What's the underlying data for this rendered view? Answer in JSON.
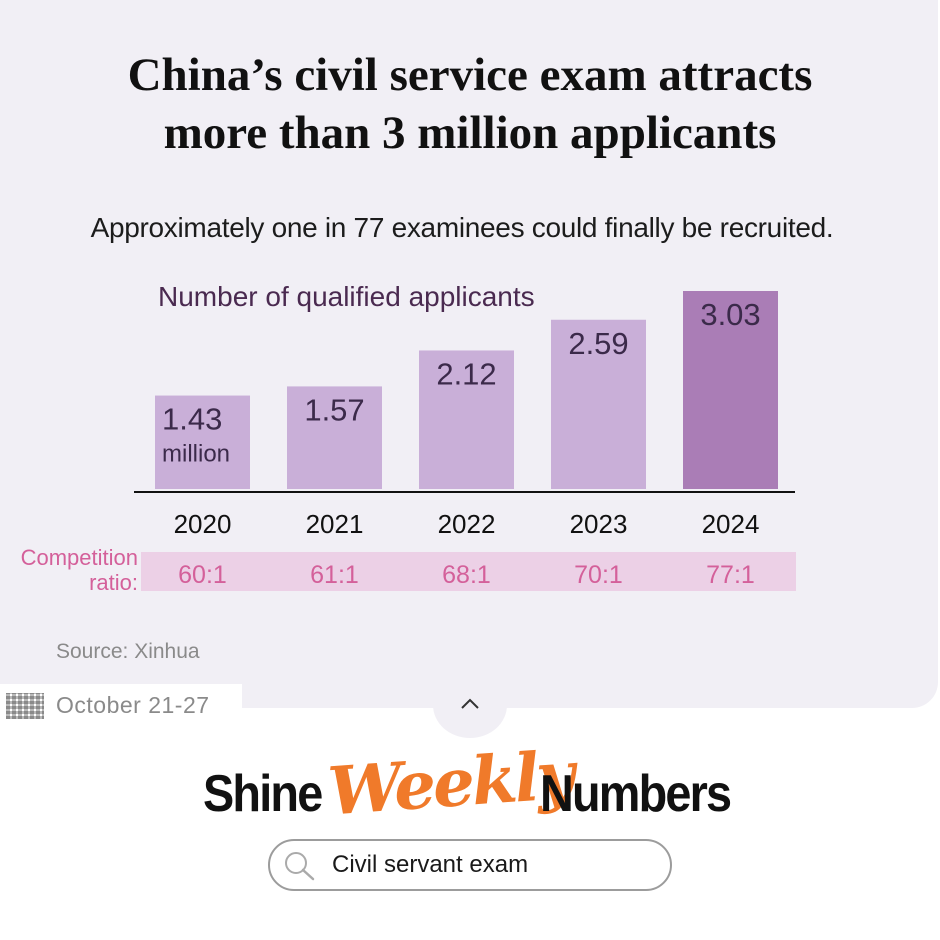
{
  "header": {
    "title_line1": "China’s civil service exam attracts",
    "title_line2": "more than 3 million applicants",
    "subtitle": "Approximately one in 77 examinees could finally be recruited."
  },
  "chart_data": {
    "type": "bar",
    "title": "Number of qualified applicants",
    "categories": [
      "2020",
      "2021",
      "2022",
      "2023",
      "2024"
    ],
    "values": [
      1.43,
      1.57,
      2.12,
      2.59,
      3.03
    ],
    "value_labels": [
      "1.43",
      "1.57",
      "2.12",
      "2.59",
      "3.03"
    ],
    "unit_label": "million",
    "ratio_label_line1": "Competition",
    "ratio_label_line2": "ratio:",
    "ratios": [
      "60:1",
      "61:1",
      "68:1",
      "70:1",
      "77:1"
    ],
    "colors": {
      "bar": "#c9afd8",
      "bar_highlight": "#aa7db6",
      "value_text": "#3b2a4a",
      "title_text": "#4a2a50",
      "ratio_band": "#ecd0e6",
      "ratio_text": "#d4609a"
    },
    "highlight_index": 4
  },
  "footer": {
    "source": "Source: Xinhua",
    "date_range": "October 21-27"
  },
  "brand": {
    "word1": "Shine",
    "word2": "Weekly",
    "word3": "Numbers"
  },
  "search": {
    "text": "Civil servant exam"
  },
  "icons": {
    "collapse": "chevron-up-icon",
    "search": "search-icon",
    "calendar": "calendar-grid-icon"
  }
}
